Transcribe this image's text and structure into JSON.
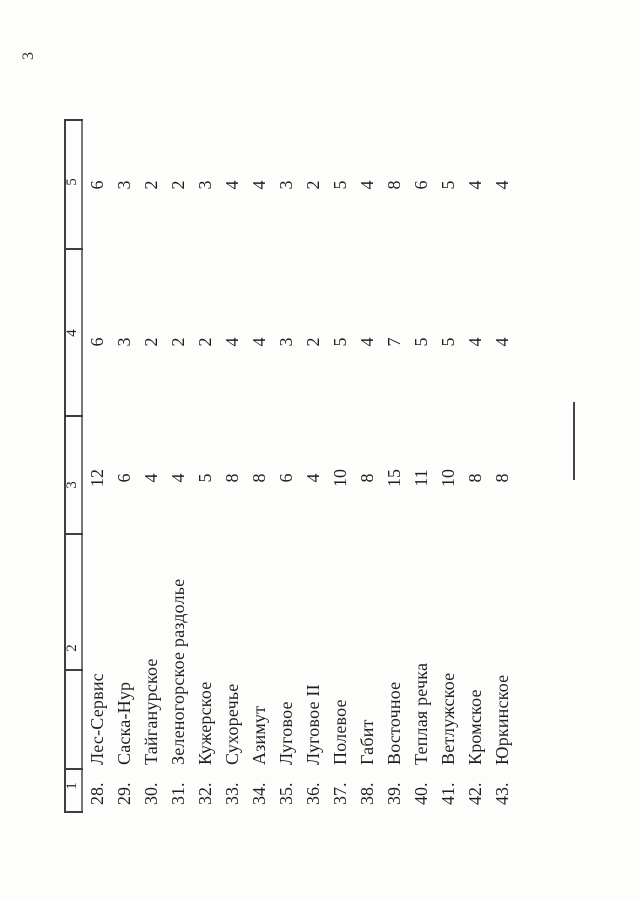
{
  "page": {
    "number": "3"
  },
  "table": {
    "column_headers": [
      "1",
      "2",
      "3",
      "4",
      "5"
    ],
    "rows": [
      {
        "num": "28.",
        "name": "Лес-Сервис",
        "col3": "12",
        "col4": "6",
        "col5": "6"
      },
      {
        "num": "29.",
        "name": "Саска-Нур",
        "col3": "6",
        "col4": "3",
        "col5": "3"
      },
      {
        "num": "30.",
        "name": "Тайганурское",
        "col3": "4",
        "col4": "2",
        "col5": "2"
      },
      {
        "num": "31.",
        "name": "Зеленогорское раздолье",
        "col3": "4",
        "col4": "2",
        "col5": "2"
      },
      {
        "num": "32.",
        "name": "Кужерское",
        "col3": "5",
        "col4": "2",
        "col5": "3"
      },
      {
        "num": "33.",
        "name": "Сухоречье",
        "col3": "8",
        "col4": "4",
        "col5": "4"
      },
      {
        "num": "34.",
        "name": "Азимут",
        "col3": "8",
        "col4": "4",
        "col5": "4"
      },
      {
        "num": "35.",
        "name": "Луговое",
        "col3": "6",
        "col4": "3",
        "col5": "3"
      },
      {
        "num": "36.",
        "name": "Луговое II",
        "col3": "4",
        "col4": "2",
        "col5": "2"
      },
      {
        "num": "37.",
        "name": "Полевое",
        "col3": "10",
        "col4": "5",
        "col5": "5"
      },
      {
        "num": "38.",
        "name": "Габит",
        "col3": "8",
        "col4": "4",
        "col5": "4"
      },
      {
        "num": "39.",
        "name": "Восточное",
        "col3": "15",
        "col4": "7",
        "col5": "8"
      },
      {
        "num": "40.",
        "name": "Теплая речка",
        "col3": "11",
        "col4": "5",
        "col5": "6"
      },
      {
        "num": "41.",
        "name": "Ветлужское",
        "col3": "10",
        "col4": "5",
        "col5": "5"
      },
      {
        "num": "42.",
        "name": "Кромское",
        "col3": "8",
        "col4": "4",
        "col5": "4"
      },
      {
        "num": "43.",
        "name": "Юркинское",
        "col3": "8",
        "col4": "4",
        "col5": "4"
      }
    ]
  }
}
